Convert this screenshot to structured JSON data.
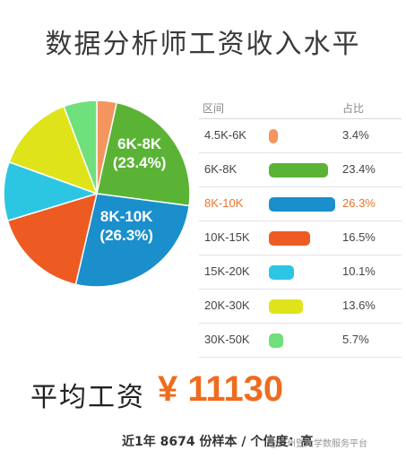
{
  "chart_data": {
    "type": "pie",
    "title": "数据分析师工资收入水平",
    "header": {
      "range": "区间",
      "share": "占比"
    },
    "slices": [
      {
        "label": "4.5K-6K",
        "value": 3.4,
        "value_text": "3.4%",
        "color": "#f4955f"
      },
      {
        "label": "6K-8K",
        "value": 23.4,
        "value_text": "23.4%",
        "color": "#5bb336",
        "pie_label": "6K-8K",
        "pie_pct": "(23.4%)"
      },
      {
        "label": "8K-10K",
        "value": 26.3,
        "value_text": "26.3%",
        "color": "#1a8fcc",
        "pie_label": "8K-10K",
        "pie_pct": "(26.3%)"
      },
      {
        "label": "10K-15K",
        "value": 16.5,
        "value_text": "16.5%",
        "color": "#ee5b22"
      },
      {
        "label": "15K-20K",
        "value": 10.1,
        "value_text": "10.1%",
        "color": "#2cc6e2"
      },
      {
        "label": "20K-30K",
        "value": 13.6,
        "value_text": "13.6%",
        "color": "#dfe41a"
      },
      {
        "label": "30K-50K",
        "value": 5.7,
        "value_text": "5.7%",
        "color": "#6fe07c"
      }
    ],
    "highlight_label_color": "#e8742f"
  },
  "summary": {
    "avg_label": "平均工资",
    "avg_value": "¥ 11130",
    "footer": "近1年 8674 份样本 / 个信度：高",
    "watermark": "@广州暨大学数服务平台"
  }
}
